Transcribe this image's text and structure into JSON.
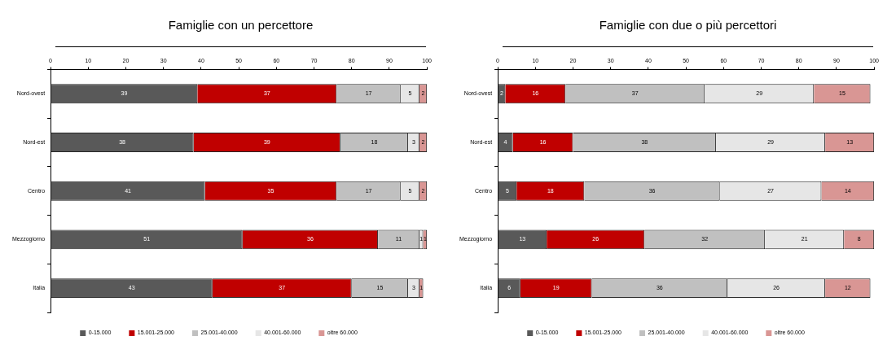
{
  "chart_data": [
    {
      "type": "bar",
      "orientation": "horizontal",
      "stacked": true,
      "title": "Famiglie con un percettore",
      "categories": [
        "Nord-ovest",
        "Nord-est",
        "Centro",
        "Mezzogiorno",
        "Italia"
      ],
      "series": [
        {
          "name": "0-15.000",
          "color": "#595959",
          "values": [
            39,
            38,
            41,
            51,
            43
          ]
        },
        {
          "name": "15.001-25.000",
          "color": "#c00000",
          "values": [
            37,
            39,
            35,
            36,
            37
          ]
        },
        {
          "name": "25.001-40.000",
          "color": "#c0c0c0",
          "values": [
            17,
            18,
            17,
            11,
            15
          ]
        },
        {
          "name": "40.001-60.000",
          "color": "#e6e6e6",
          "values": [
            5,
            3,
            5,
            1,
            3
          ]
        },
        {
          "name": "oltre 60.000",
          "color": "#d99694",
          "values": [
            2,
            2,
            2,
            1,
            1
          ]
        }
      ],
      "xlim": [
        0,
        100
      ],
      "xticks": [
        0,
        10,
        20,
        30,
        40,
        50,
        60,
        70,
        80,
        90,
        100
      ],
      "data_labels": true,
      "legend": "bottom",
      "grid": false
    },
    {
      "type": "bar",
      "orientation": "horizontal",
      "stacked": true,
      "title": "Famiglie con due o più percettori",
      "categories": [
        "Nord-ovest",
        "Nord-est",
        "Centro",
        "Mezzogiorno",
        "Italia"
      ],
      "series": [
        {
          "name": "0-15.000",
          "color": "#595959",
          "values": [
            2,
            4,
            5,
            13,
            6
          ]
        },
        {
          "name": "15.001-25.000",
          "color": "#c00000",
          "values": [
            16,
            16,
            18,
            26,
            19
          ]
        },
        {
          "name": "25.001-40.000",
          "color": "#c0c0c0",
          "values": [
            37,
            38,
            36,
            32,
            36
          ]
        },
        {
          "name": "40.001-60.000",
          "color": "#e6e6e6",
          "values": [
            29,
            29,
            27,
            21,
            26
          ]
        },
        {
          "name": "oltre 60.000",
          "color": "#d99694",
          "values": [
            15,
            13,
            14,
            8,
            12
          ]
        }
      ],
      "xlim": [
        0,
        100
      ],
      "xticks": [
        0,
        10,
        20,
        30,
        40,
        50,
        60,
        70,
        80,
        90,
        100
      ],
      "data_labels": true,
      "legend": "bottom",
      "grid": false
    }
  ]
}
